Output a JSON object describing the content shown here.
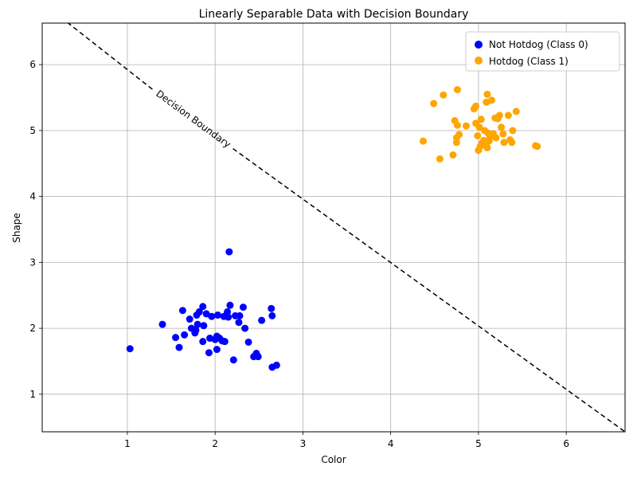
{
  "chart_data": {
    "type": "scatter",
    "title": "Linearly Separable Data with Decision Boundary",
    "xlabel": "Color",
    "ylabel": "Shape",
    "xlim": [
      0.03,
      6.67
    ],
    "ylim": [
      0.43,
      6.63
    ],
    "xticks": [
      1,
      2,
      3,
      4,
      5,
      6
    ],
    "yticks": [
      1,
      2,
      3,
      4,
      5,
      6
    ],
    "grid": true,
    "legend_position": "top-right",
    "series": [
      {
        "name": "Not Hotdog (Class 0)",
        "color": "#0000ff",
        "points": [
          [
            1.03,
            1.69
          ],
          [
            1.4,
            2.06
          ],
          [
            1.55,
            1.86
          ],
          [
            1.59,
            1.71
          ],
          [
            1.63,
            2.27
          ],
          [
            1.65,
            1.9
          ],
          [
            1.71,
            2.14
          ],
          [
            1.73,
            2.0
          ],
          [
            1.77,
            1.93
          ],
          [
            1.78,
            1.97
          ],
          [
            1.79,
            2.2
          ],
          [
            1.8,
            2.06
          ],
          [
            1.82,
            2.25
          ],
          [
            1.86,
            2.33
          ],
          [
            1.86,
            1.8
          ],
          [
            1.87,
            2.04
          ],
          [
            1.9,
            2.22
          ],
          [
            1.93,
            1.63
          ],
          [
            1.94,
            1.85
          ],
          [
            1.96,
            2.18
          ],
          [
            2.0,
            1.83
          ],
          [
            2.02,
            1.68
          ],
          [
            2.02,
            1.88
          ],
          [
            2.03,
            2.2
          ],
          [
            2.05,
            1.85
          ],
          [
            2.08,
            1.81
          ],
          [
            2.1,
            2.18
          ],
          [
            2.11,
            1.8
          ],
          [
            2.13,
            2.2
          ],
          [
            2.14,
            2.25
          ],
          [
            2.15,
            2.17
          ],
          [
            2.16,
            3.16
          ],
          [
            2.17,
            2.35
          ],
          [
            2.21,
            1.52
          ],
          [
            2.23,
            2.19
          ],
          [
            2.27,
            2.09
          ],
          [
            2.28,
            2.19
          ],
          [
            2.32,
            2.32
          ],
          [
            2.34,
            2.0
          ],
          [
            2.38,
            1.79
          ],
          [
            2.44,
            1.57
          ],
          [
            2.47,
            1.62
          ],
          [
            2.49,
            1.57
          ],
          [
            2.53,
            2.12
          ],
          [
            2.64,
            2.3
          ],
          [
            2.65,
            1.41
          ],
          [
            2.65,
            2.19
          ],
          [
            2.7,
            1.44
          ]
        ]
      },
      {
        "name": "Hotdog (Class 1)",
        "color": "#ffa500",
        "points": [
          [
            4.37,
            4.84
          ],
          [
            4.49,
            5.41
          ],
          [
            4.56,
            4.57
          ],
          [
            4.6,
            5.54
          ],
          [
            4.71,
            4.63
          ],
          [
            4.73,
            5.15
          ],
          [
            4.75,
            4.82
          ],
          [
            4.75,
            4.89
          ],
          [
            4.76,
            5.62
          ],
          [
            4.76,
            5.08
          ],
          [
            4.78,
            4.94
          ],
          [
            4.86,
            5.07
          ],
          [
            4.95,
            5.33
          ],
          [
            4.97,
            5.37
          ],
          [
            4.97,
            5.11
          ],
          [
            4.99,
            4.92
          ],
          [
            5.0,
            4.7
          ],
          [
            5.01,
            5.05
          ],
          [
            5.02,
            4.76
          ],
          [
            5.03,
            5.17
          ],
          [
            5.04,
            4.81
          ],
          [
            5.06,
            4.85
          ],
          [
            5.07,
            5.0
          ],
          [
            5.08,
            4.78
          ],
          [
            5.09,
            5.43
          ],
          [
            5.1,
            5.55
          ],
          [
            5.1,
            4.74
          ],
          [
            5.11,
            4.96
          ],
          [
            5.12,
            4.84
          ],
          [
            5.13,
            4.91
          ],
          [
            5.15,
            5.46
          ],
          [
            5.17,
            4.95
          ],
          [
            5.19,
            5.19
          ],
          [
            5.2,
            4.89
          ],
          [
            5.22,
            5.18
          ],
          [
            5.24,
            5.23
          ],
          [
            5.26,
            5.05
          ],
          [
            5.28,
            4.95
          ],
          [
            5.29,
            4.82
          ],
          [
            5.34,
            5.23
          ],
          [
            5.36,
            4.86
          ],
          [
            5.38,
            4.82
          ],
          [
            5.39,
            5.0
          ],
          [
            5.43,
            5.29
          ],
          [
            5.65,
            4.77
          ],
          [
            5.67,
            4.76
          ]
        ]
      }
    ],
    "decision_boundary": {
      "label": "Decision Boundary",
      "style": "dashed",
      "color": "#000000",
      "from": [
        0.03,
        6.94
      ],
      "to": [
        6.67,
        0.43
      ],
      "label_at": [
        1.75,
        5.17
      ]
    }
  }
}
